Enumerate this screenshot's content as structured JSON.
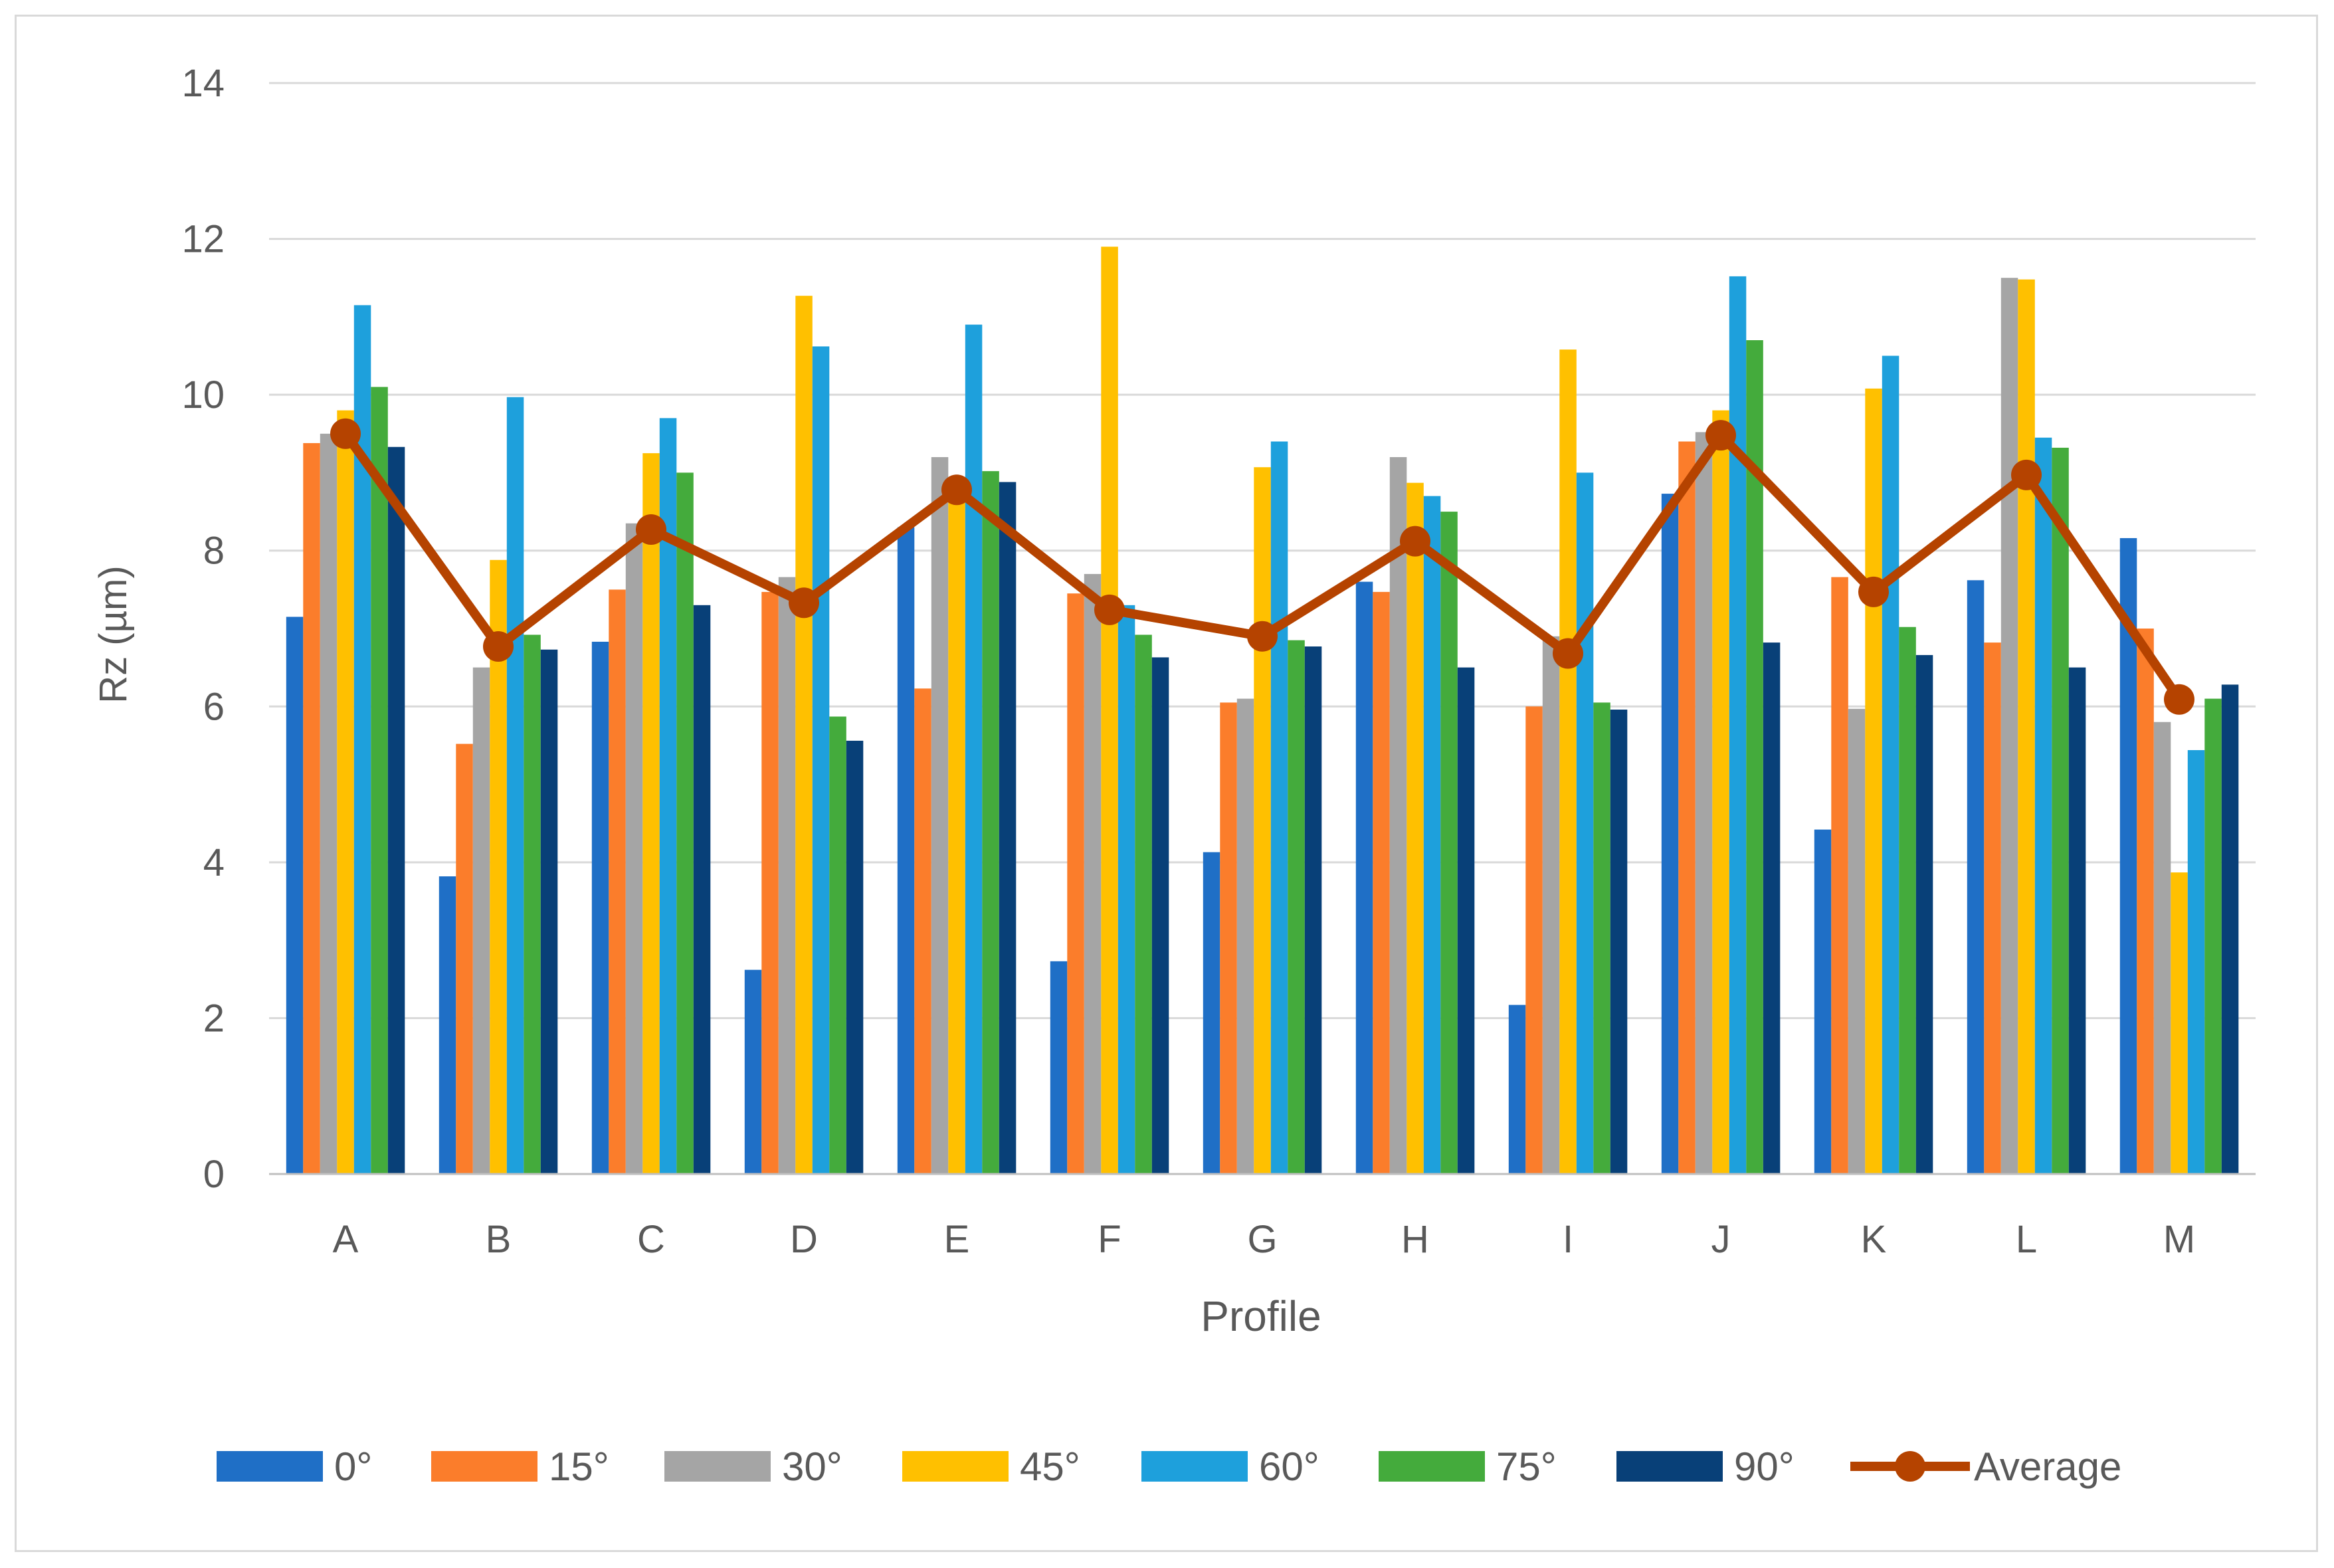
{
  "chart_data": {
    "type": "bar",
    "title": "",
    "xlabel": "Profile",
    "ylabel": "Rz (µm)",
    "ylim": [
      0,
      14
    ],
    "yticks": [
      0,
      2,
      4,
      6,
      8,
      10,
      12,
      14
    ],
    "grid": true,
    "legend_position": "bottom",
    "categories": [
      "A",
      "B",
      "C",
      "D",
      "E",
      "F",
      "G",
      "H",
      "I",
      "J",
      "K",
      "L",
      "M"
    ],
    "series": [
      {
        "name": "0°",
        "type": "bar",
        "color": "#1f6fc6",
        "values": [
          7.15,
          3.82,
          6.83,
          2.62,
          8.3,
          2.73,
          4.13,
          7.6,
          2.17,
          8.73,
          4.42,
          7.62,
          8.16
        ]
      },
      {
        "name": "15°",
        "type": "bar",
        "color": "#fb7d2b",
        "values": [
          9.38,
          5.52,
          7.5,
          7.47,
          6.23,
          7.45,
          6.05,
          7.47,
          6.0,
          9.4,
          7.66,
          6.82,
          7.0
        ]
      },
      {
        "name": "30°",
        "type": "bar",
        "color": "#a5a5a5",
        "values": [
          9.5,
          6.5,
          8.35,
          7.66,
          9.2,
          7.7,
          6.1,
          9.2,
          6.9,
          9.52,
          5.97,
          11.5,
          5.8
        ]
      },
      {
        "name": "45°",
        "type": "bar",
        "color": "#ffc000",
        "values": [
          9.8,
          7.88,
          9.25,
          11.27,
          8.75,
          11.9,
          9.07,
          8.87,
          10.58,
          9.8,
          10.08,
          11.48,
          3.87
        ]
      },
      {
        "name": "60°",
        "type": "bar",
        "color": "#1ea0dc",
        "values": [
          11.15,
          9.97,
          9.7,
          10.62,
          10.9,
          7.3,
          9.4,
          8.7,
          9.0,
          11.52,
          10.5,
          9.45,
          5.44
        ]
      },
      {
        "name": "75°",
        "type": "bar",
        "color": "#44ab3c",
        "values": [
          10.1,
          6.92,
          9.0,
          5.87,
          9.02,
          6.92,
          6.85,
          8.5,
          6.05,
          10.7,
          7.02,
          9.32,
          6.1
        ]
      },
      {
        "name": "90°",
        "type": "bar",
        "color": "#084078",
        "values": [
          9.33,
          6.73,
          7.3,
          5.56,
          8.88,
          6.63,
          6.77,
          6.5,
          5.96,
          6.82,
          6.66,
          6.5,
          6.28
        ]
      },
      {
        "name": "Average",
        "type": "line",
        "color": "#b54300",
        "values": [
          9.5,
          6.77,
          8.27,
          7.33,
          8.78,
          7.24,
          6.9,
          8.12,
          6.68,
          9.48,
          7.47,
          8.97,
          6.09
        ]
      }
    ]
  }
}
